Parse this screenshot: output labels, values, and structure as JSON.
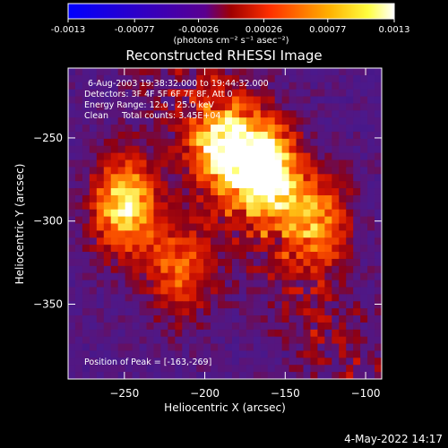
{
  "colorbar": {
    "tick_labels": [
      "-0.0013",
      "-0.00077",
      "-0.00026",
      "0.00026",
      "0.00077",
      "0.0013"
    ],
    "tick_values": [
      -0.0013,
      -0.00077,
      -0.00026,
      0.00026,
      0.00077,
      0.0013
    ],
    "range": [
      -0.0013,
      0.0013
    ],
    "units_label": "(photons cm⁻² s⁻¹ asec⁻²)",
    "colormap": [
      "#0000ff",
      "#ff0000",
      "#ffff00",
      "#ffffff"
    ]
  },
  "chart_data": {
    "type": "heatmap",
    "title": "Reconstructed RHESSI Image",
    "xlabel": "Heliocentric X (arcsec)",
    "ylabel": "Heliocentric Y (arcsec)",
    "xlim": [
      -285,
      -90
    ],
    "ylim": [
      -395,
      -208
    ],
    "x_ticks": [
      -250,
      -200,
      -150,
      -100
    ],
    "y_ticks": [
      -250,
      -300,
      -350
    ],
    "x_tick_labels": [
      "−250",
      "−200",
      "−150",
      "−100"
    ],
    "y_tick_labels": [
      "−250",
      "−300",
      "−350"
    ],
    "bright_sources": [
      {
        "x": -163,
        "y": -269,
        "relative_intensity": 1.0
      },
      {
        "x": -250,
        "y": -290,
        "relative_intensity": 0.85
      },
      {
        "x": -190,
        "y": -255,
        "relative_intensity": 0.7
      },
      {
        "x": -130,
        "y": -300,
        "relative_intensity": 0.6
      },
      {
        "x": -215,
        "y": -330,
        "relative_intensity": 0.55
      }
    ],
    "peak": [
      -163,
      -269
    ]
  },
  "annotations": {
    "time_range": "6-Aug-2003 19:38:32.000 to 19:44:32.000",
    "detectors": "Detectors: 3F 4F 5F 6F 7F 8F, Att 0",
    "energy_range": "Energy Range: 12.0 - 25.0 keV",
    "method_counts": "Clean     Total counts: 3.45E+04",
    "peak_position": "Position of Peak = [-163,-269]"
  },
  "footer_date": "4-May-2022 14:17"
}
